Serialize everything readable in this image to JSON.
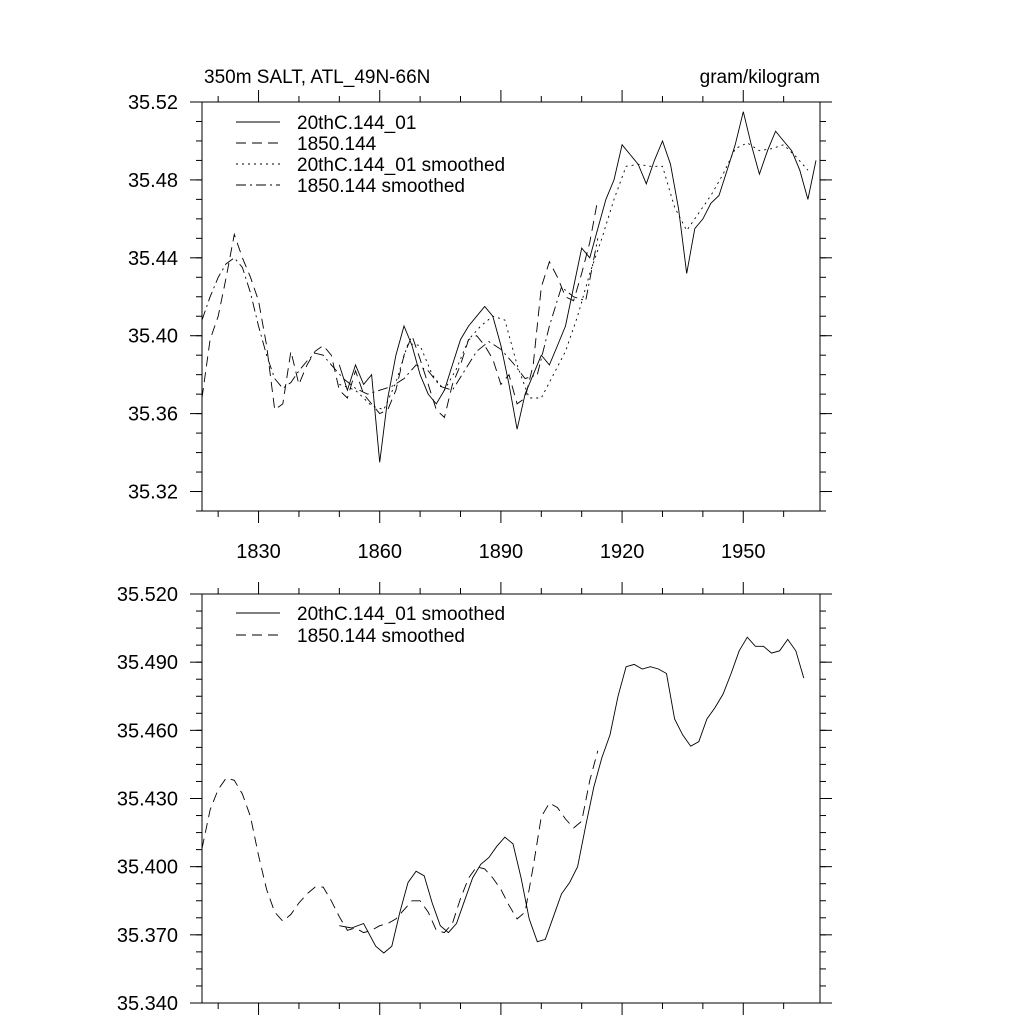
{
  "chart_data": [
    {
      "type": "line",
      "title": "350m SALT, ATL_49N-66N",
      "units": "gram/kilogram",
      "ylim": [
        35.31,
        35.52
      ],
      "xlim": [
        1816,
        1969
      ],
      "y_ticks": [
        35.32,
        35.36,
        35.4,
        35.44,
        35.48,
        35.52
      ],
      "y_tick_labels": [
        "35.32",
        "35.36",
        "35.40",
        "35.44",
        "35.48",
        "35.52"
      ],
      "x_ticks": [
        1830,
        1860,
        1890,
        1920,
        1950
      ],
      "x_tick_labels": [
        "1830",
        "1860",
        "1890",
        "1920",
        "1950"
      ],
      "legend_position": "top-left",
      "series": [
        {
          "name": "20thC.144_01",
          "style": "solid",
          "x": [
            1850,
            1852,
            1854,
            1856,
            1858,
            1860,
            1862,
            1864,
            1866,
            1868,
            1870,
            1872,
            1874,
            1876,
            1878,
            1880,
            1882,
            1884,
            1886,
            1888,
            1890,
            1892,
            1894,
            1896,
            1898,
            1900,
            1902,
            1904,
            1906,
            1908,
            1910,
            1912,
            1914,
            1916,
            1918,
            1920,
            1922,
            1924,
            1926,
            1928,
            1930,
            1932,
            1934,
            1936,
            1938,
            1940,
            1942,
            1944,
            1946,
            1948,
            1950,
            1952,
            1954,
            1956,
            1958,
            1960,
            1962,
            1964,
            1966,
            1968
          ],
          "y": [
            35.385,
            35.372,
            35.385,
            35.375,
            35.38,
            35.335,
            35.368,
            35.39,
            35.405,
            35.395,
            35.38,
            35.37,
            35.365,
            35.372,
            35.385,
            35.398,
            35.405,
            35.41,
            35.415,
            35.41,
            35.395,
            35.375,
            35.352,
            35.37,
            35.38,
            35.39,
            35.385,
            35.395,
            35.405,
            35.425,
            35.445,
            35.44,
            35.455,
            35.47,
            35.48,
            35.498,
            35.493,
            35.488,
            35.478,
            35.49,
            35.5,
            35.488,
            35.465,
            35.432,
            35.455,
            35.46,
            35.468,
            35.472,
            35.485,
            35.498,
            35.515,
            35.498,
            35.483,
            35.495,
            35.505,
            35.5,
            35.495,
            35.485,
            35.47,
            35.49
          ]
        },
        {
          "name": "1850.144",
          "style": "dashed",
          "x": [
            1816,
            1818,
            1820,
            1822,
            1824,
            1826,
            1828,
            1830,
            1832,
            1834,
            1836,
            1838,
            1840,
            1842,
            1844,
            1846,
            1848,
            1850,
            1852,
            1854,
            1856,
            1858,
            1860,
            1862,
            1864,
            1866,
            1868,
            1870,
            1872,
            1874,
            1876,
            1878,
            1880,
            1882,
            1884,
            1886,
            1888,
            1890,
            1892,
            1894,
            1896,
            1898,
            1900,
            1902,
            1904,
            1906,
            1908,
            1910,
            1912,
            1914
          ],
          "y": [
            35.368,
            35.398,
            35.41,
            35.43,
            35.452,
            35.44,
            35.43,
            35.418,
            35.395,
            35.362,
            35.365,
            35.392,
            35.375,
            35.385,
            35.392,
            35.395,
            35.39,
            35.372,
            35.368,
            35.382,
            35.37,
            35.365,
            35.36,
            35.362,
            35.372,
            35.39,
            35.4,
            35.388,
            35.375,
            35.362,
            35.358,
            35.375,
            35.385,
            35.398,
            35.4,
            35.395,
            35.388,
            35.375,
            35.38,
            35.365,
            35.368,
            35.385,
            35.425,
            35.438,
            35.43,
            35.42,
            35.418,
            35.432,
            35.448,
            35.47
          ]
        },
        {
          "name": "20thC.144_01 smoothed",
          "style": "dotted",
          "x": [
            1850,
            1854,
            1858,
            1861,
            1864,
            1867,
            1870,
            1873,
            1876,
            1879,
            1882,
            1885,
            1888,
            1891,
            1894,
            1897,
            1900,
            1903,
            1906,
            1909,
            1912,
            1915,
            1918,
            1921,
            1924,
            1927,
            1930,
            1933,
            1936,
            1939,
            1942,
            1945,
            1948,
            1951,
            1954,
            1957,
            1960,
            1963,
            1966
          ],
          "y": [
            35.375,
            35.372,
            35.364,
            35.362,
            35.376,
            35.396,
            35.395,
            35.38,
            35.372,
            35.383,
            35.398,
            35.405,
            35.41,
            35.408,
            35.385,
            35.368,
            35.368,
            35.38,
            35.392,
            35.41,
            35.432,
            35.45,
            35.47,
            35.487,
            35.488,
            35.487,
            35.487,
            35.466,
            35.454,
            35.463,
            35.472,
            35.483,
            35.496,
            35.499,
            35.495,
            35.496,
            35.498,
            35.492,
            35.485
          ]
        },
        {
          "name": "1850.144 smoothed",
          "style": "dashdot",
          "x": [
            1816,
            1818,
            1820,
            1822,
            1824,
            1826,
            1828,
            1830,
            1832,
            1834,
            1836,
            1838,
            1840,
            1842,
            1844,
            1846,
            1848,
            1851,
            1854,
            1857,
            1860,
            1863,
            1866,
            1869,
            1872,
            1875,
            1878,
            1881,
            1884,
            1887,
            1890,
            1893,
            1896,
            1899,
            1902,
            1905,
            1908,
            1911,
            1914
          ],
          "y": [
            35.408,
            35.42,
            35.43,
            35.437,
            35.44,
            35.435,
            35.422,
            35.405,
            35.39,
            35.378,
            35.373,
            35.376,
            35.382,
            35.387,
            35.391,
            35.39,
            35.385,
            35.378,
            35.373,
            35.37,
            35.372,
            35.374,
            35.378,
            35.385,
            35.382,
            35.374,
            35.372,
            35.382,
            35.392,
            35.397,
            35.393,
            35.386,
            35.378,
            35.38,
            35.405,
            35.425,
            35.42,
            35.418,
            35.45
          ]
        }
      ]
    },
    {
      "type": "line",
      "ylim": [
        35.34,
        35.52
      ],
      "xlim": [
        1816,
        1969
      ],
      "y_ticks": [
        35.34,
        35.37,
        35.4,
        35.43,
        35.46,
        35.49,
        35.52
      ],
      "y_tick_labels": [
        "35.340",
        "35.370",
        "35.400",
        "35.430",
        "35.460",
        "35.490",
        "35.520"
      ],
      "legend_position": "top-left",
      "series": [
        {
          "name": "20thC.144_01 smoothed",
          "style": "solid",
          "x": [
            1850,
            1853,
            1856,
            1859,
            1861,
            1863,
            1865,
            1867,
            1869,
            1871,
            1873,
            1875,
            1877,
            1879,
            1881,
            1883,
            1885,
            1887,
            1889,
            1891,
            1893,
            1895,
            1897,
            1899,
            1901,
            1903,
            1905,
            1907,
            1909,
            1911,
            1913,
            1915,
            1917,
            1919,
            1921,
            1923,
            1925,
            1927,
            1929,
            1931,
            1933,
            1935,
            1937,
            1939,
            1941,
            1943,
            1945,
            1947,
            1949,
            1951,
            1953,
            1955,
            1957,
            1959,
            1961,
            1963,
            1965
          ],
          "y": [
            35.374,
            35.373,
            35.375,
            35.365,
            35.362,
            35.365,
            35.38,
            35.393,
            35.398,
            35.396,
            35.384,
            35.374,
            35.371,
            35.375,
            35.385,
            35.395,
            35.401,
            35.404,
            35.409,
            35.413,
            35.41,
            35.395,
            35.377,
            35.367,
            35.368,
            35.378,
            35.388,
            35.393,
            35.4,
            35.418,
            35.435,
            35.448,
            35.458,
            35.475,
            35.488,
            35.489,
            35.487,
            35.488,
            35.487,
            35.485,
            35.465,
            35.458,
            35.453,
            35.455,
            35.465,
            35.47,
            35.476,
            35.485,
            35.495,
            35.501,
            35.497,
            35.497,
            35.494,
            35.495,
            35.5,
            35.495,
            35.483
          ]
        },
        {
          "name": "1850.144 smoothed",
          "style": "dashed",
          "x": [
            1816,
            1818,
            1820,
            1822,
            1824,
            1826,
            1828,
            1830,
            1832,
            1834,
            1836,
            1838,
            1840,
            1842,
            1844,
            1846,
            1848,
            1850,
            1852,
            1854,
            1856,
            1858,
            1860,
            1862,
            1864,
            1866,
            1868,
            1870,
            1872,
            1874,
            1876,
            1878,
            1880,
            1882,
            1884,
            1886,
            1888,
            1890,
            1892,
            1894,
            1896,
            1898,
            1900,
            1902,
            1904,
            1906,
            1908,
            1910,
            1912,
            1914
          ],
          "y": [
            35.408,
            35.425,
            35.434,
            35.439,
            35.438,
            35.432,
            35.422,
            35.405,
            35.39,
            35.38,
            35.376,
            35.379,
            35.384,
            35.388,
            35.391,
            35.391,
            35.385,
            35.378,
            35.372,
            35.373,
            35.371,
            35.372,
            35.374,
            35.375,
            35.377,
            35.381,
            35.385,
            35.385,
            35.38,
            35.372,
            35.371,
            35.375,
            35.386,
            35.395,
            35.4,
            35.399,
            35.395,
            35.39,
            35.383,
            35.377,
            35.38,
            35.4,
            35.422,
            35.428,
            35.426,
            35.421,
            35.417,
            35.42,
            35.438,
            35.451
          ]
        }
      ]
    }
  ]
}
